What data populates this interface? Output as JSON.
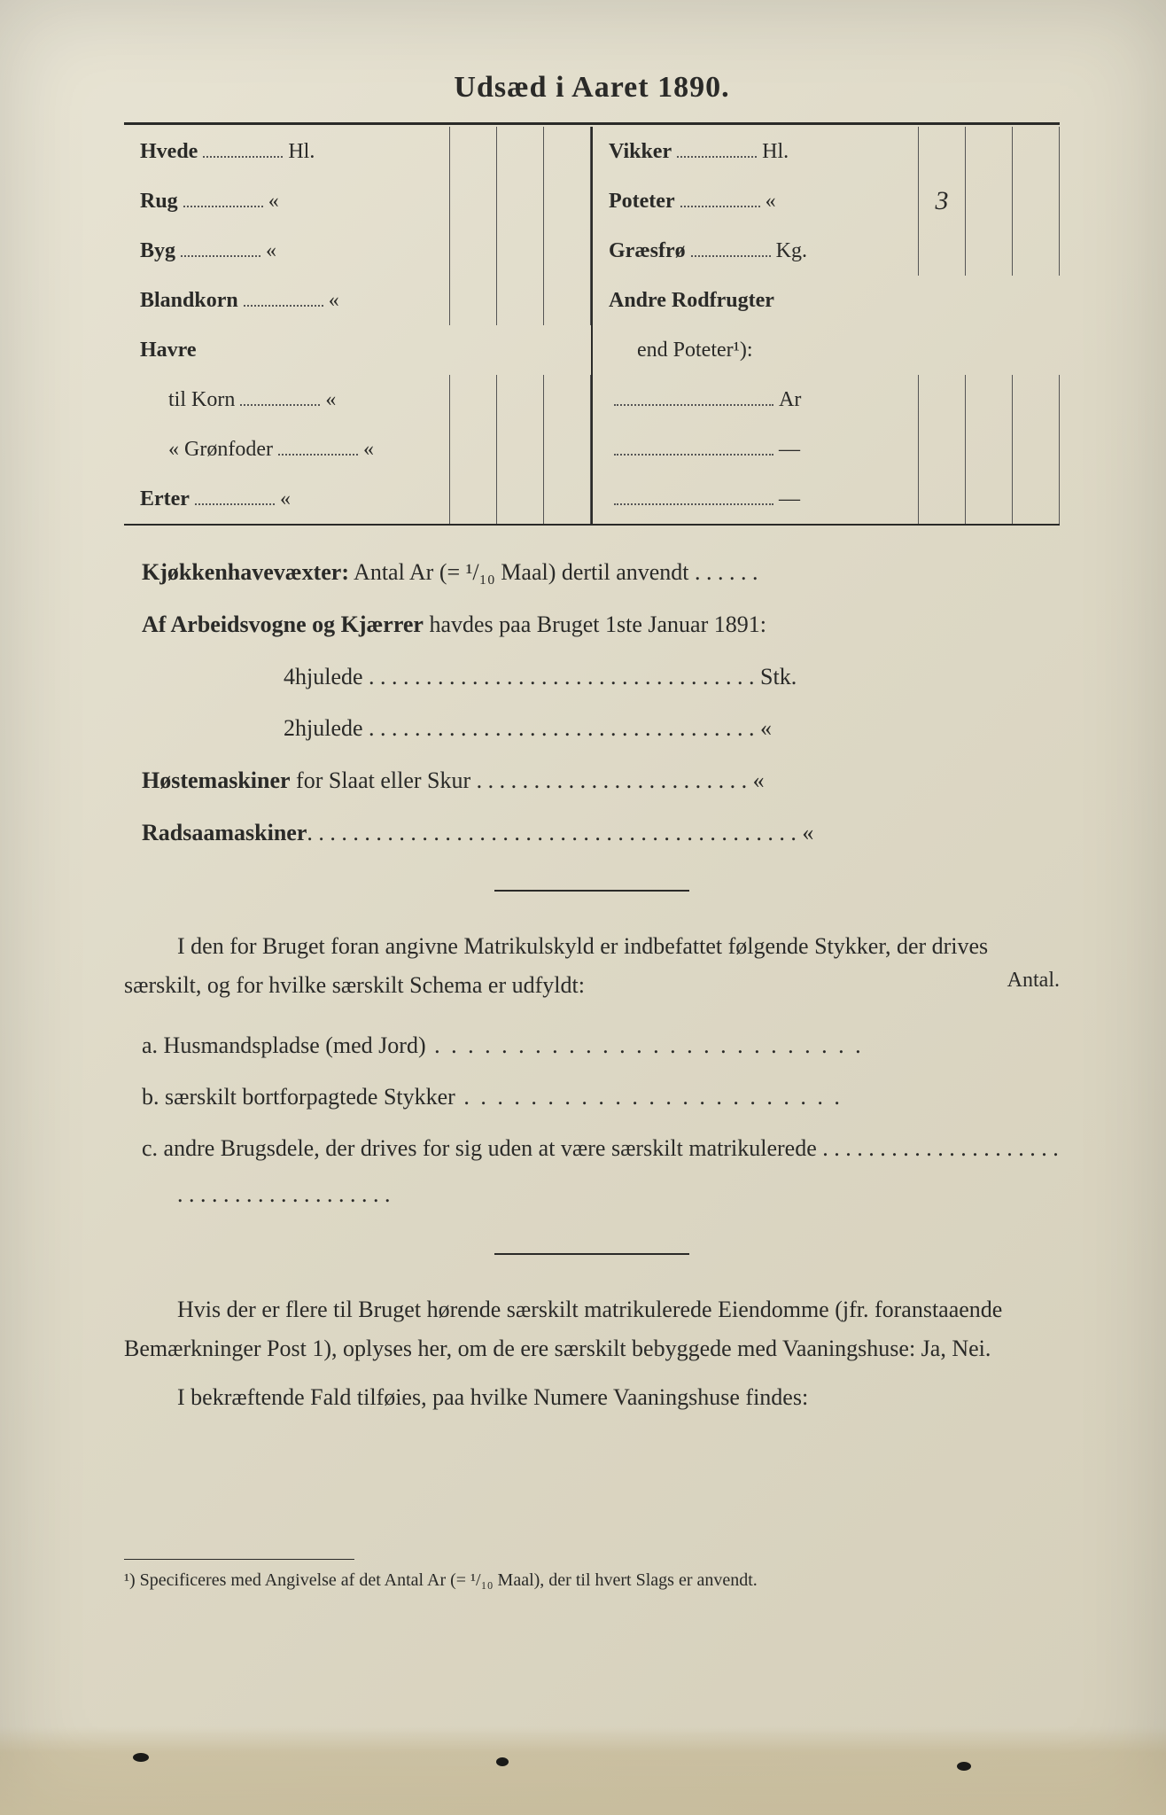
{
  "title": "Udsæd i Aaret 1890.",
  "seed_table": {
    "left": [
      {
        "label": "Hvede",
        "unit": "Hl.",
        "values": [
          "",
          "",
          ""
        ]
      },
      {
        "label": "Rug",
        "unit": "«",
        "values": [
          "",
          "",
          ""
        ]
      },
      {
        "label": "Byg",
        "unit": "«",
        "values": [
          "",
          "",
          ""
        ]
      },
      {
        "label": "Blandkorn",
        "unit": "«",
        "values": [
          "",
          "",
          ""
        ]
      },
      {
        "label": "Havre",
        "unit": "",
        "values": null,
        "no_cells": true
      },
      {
        "label": "til Korn",
        "unit": "«",
        "values": [
          "",
          "",
          ""
        ],
        "indent": true,
        "nonbold": true
      },
      {
        "label": "«  Grønfoder",
        "unit": "«",
        "values": [
          "",
          "",
          ""
        ],
        "indent": true,
        "nonbold": true
      },
      {
        "label": "Erter",
        "unit": "«",
        "values": [
          "",
          "",
          ""
        ]
      }
    ],
    "right": [
      {
        "label": "Vikker",
        "unit": "Hl.",
        "values": [
          "",
          "",
          ""
        ]
      },
      {
        "label": "Poteter",
        "unit": "«",
        "values": [
          "3",
          "",
          ""
        ]
      },
      {
        "label": "Græsfrø",
        "unit": "Kg.",
        "values": [
          "",
          "",
          ""
        ]
      },
      {
        "label": "Andre Rodfrugter",
        "unit": "",
        "values": null,
        "no_cells": true
      },
      {
        "label": "end Poteter¹):",
        "unit": "",
        "values": null,
        "no_cells": true,
        "indent": true,
        "nonbold": true
      },
      {
        "label": "",
        "unit": "Ar",
        "values": [
          "",
          "",
          ""
        ],
        "dotted_only": true
      },
      {
        "label": "",
        "unit": "—",
        "values": [
          "",
          "",
          ""
        ],
        "dotted_only": true
      },
      {
        "label": "",
        "unit": "—",
        "values": [
          "",
          "",
          ""
        ],
        "dotted_only": true
      }
    ]
  },
  "lines": {
    "kjokken_bold": "Kjøkkenhavevæxter:",
    "kjokken_rest": " Antal Ar (= ¹/₁₀ Maal) dertil anvendt . . . . . .",
    "vogne_bold": "Af Arbeidsvogne og Kjærrer",
    "vogne_rest": " havdes paa Bruget 1ste Januar 1891:",
    "hjul4": "4hjulede . . . . . . . . . . . . . . . . . . . . . . . . . . . . . . . . . . Stk.",
    "hjul2": "2hjulede . . . . . . . . . . . . . . . . . . . . . . . . . . . . . . . . . .   «",
    "hoste_bold": "Høstemaskiner",
    "hoste_rest": " for Slaat eller Skur . . . . . . . . . . . . . . . . . . . . . . . .   «",
    "rad_bold": "Radsaamaskiner",
    "rad_rest": ". . . . . . . . . . . . . . . . . . . . . . . . . . . . . . . . . . . . . . . . . . .   «"
  },
  "para1_a": "I den for Bruget foran angivne Matrikulskyld er indbefattet følgende Stykker, der drives særskilt, og for hvilke særskilt Schema er udfyldt:",
  "antal": "Antal.",
  "list": {
    "a_pre": "a.   ",
    "a_bold": "Husmandspladse (med Jord)",
    "a_dots": " . . . . . . . . . . . . . . . . . . . . . . . . . .",
    "b_pre": "b.   ",
    "b_bold": "særskilt bortforpagtede Stykker",
    "b_dots": " . . . . . . . . . . . . . . . . . . . . . . .",
    "c_pre": "c.   ",
    "c_bold": "andre Brugsdele,",
    "c_rest": " der drives for sig uden at være særskilt matrikulerede . . . . . . . . . . . . . . . . . . . . . . . . . . . . . . . . . . . . . . . ."
  },
  "para2": "Hvis der er flere til Bruget hørende særskilt matrikulerede Eiendomme (jfr. foranstaaende Bemærkninger Post 1), oplyses her, om de ere særskilt bebyggede med ",
  "para2_bold": "Vaaningshuse:",
  "para2_end": " Ja, Nei.",
  "para3_a": "I bekræftende Fald tilføies, paa ",
  "para3_bold": "hvilke Numere",
  "para3_b": " Vaaningshuse findes:",
  "footnote": "¹) Specificeres med Angivelse af det Antal Ar (= ¹/₁₀ Maal), der til hvert Slags er anvendt.",
  "colors": {
    "paper": "#e0dbc8",
    "ink": "#2a2a28"
  }
}
